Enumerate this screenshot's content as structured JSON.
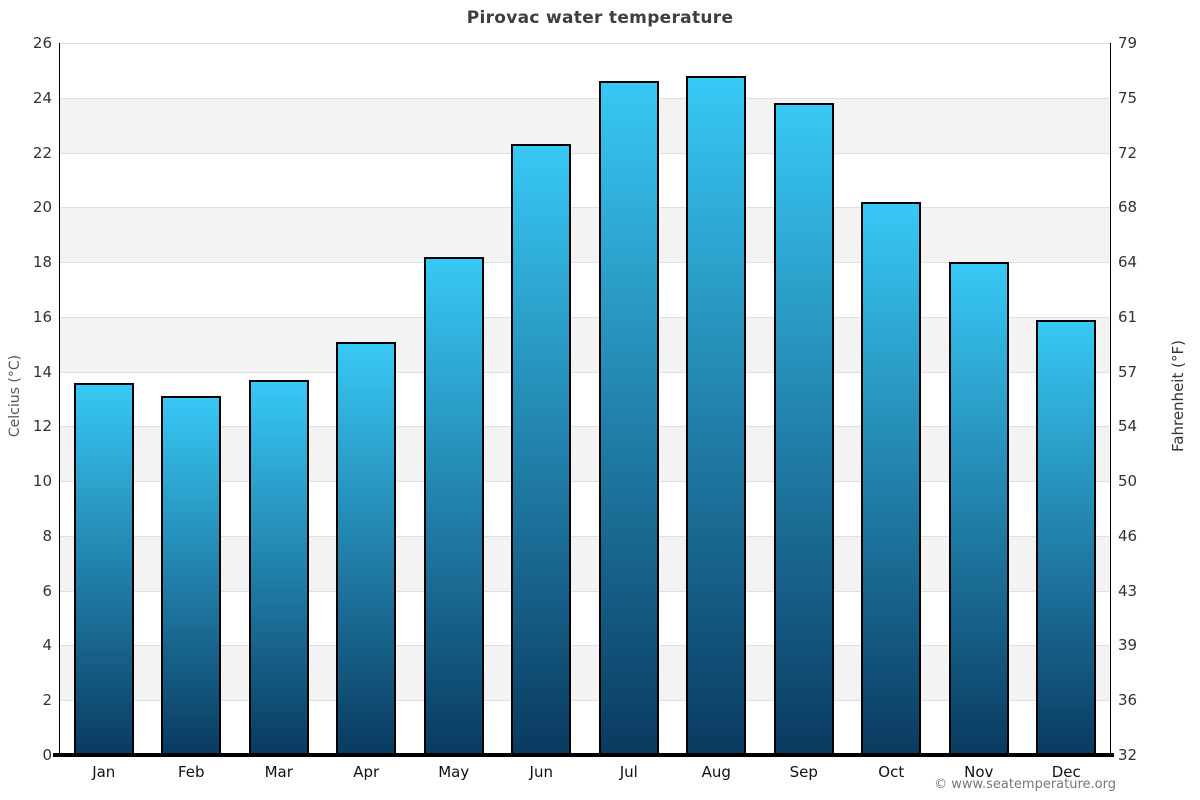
{
  "page": {
    "title": "Pirovac water temperature"
  },
  "chart_data": {
    "type": "bar",
    "title": "Pirovac water temperature",
    "categories": [
      "Jan",
      "Feb",
      "Mar",
      "Apr",
      "May",
      "Jun",
      "Jul",
      "Aug",
      "Sep",
      "Oct",
      "Nov",
      "Dec"
    ],
    "values": [
      13.6,
      13.1,
      13.7,
      15.1,
      18.2,
      22.3,
      24.6,
      24.8,
      23.8,
      20.2,
      18.0,
      15.9
    ],
    "xlabel": "",
    "ylabel_left": "Celcius (°C)",
    "ylabel_right": "Fahrenheit (°F)",
    "ylim": [
      0,
      26
    ],
    "yticks_celsius": [
      0,
      2,
      4,
      6,
      8,
      10,
      12,
      14,
      16,
      18,
      20,
      22,
      24,
      26
    ],
    "yticks_fahrenheit": [
      32,
      36,
      39,
      43,
      46,
      50,
      54,
      57,
      61,
      64,
      68,
      72,
      75,
      79
    ],
    "grid": "horizontal-bands-alternating",
    "legend": "none",
    "colors": {
      "bar_gradient_top": "#38c8f5",
      "bar_gradient_bottom": "#0a3a60",
      "bar_border": "#000000",
      "band_light": "#ffffff",
      "band_dark": "#f3f3f3",
      "gridline": "#e0e0e0",
      "axis_line": "#000000",
      "title_text": "#3e3e3e",
      "tick_text": "#333333",
      "footer_text": "#777777"
    }
  },
  "footer": {
    "copyright": "© www.seatemperature.org"
  }
}
